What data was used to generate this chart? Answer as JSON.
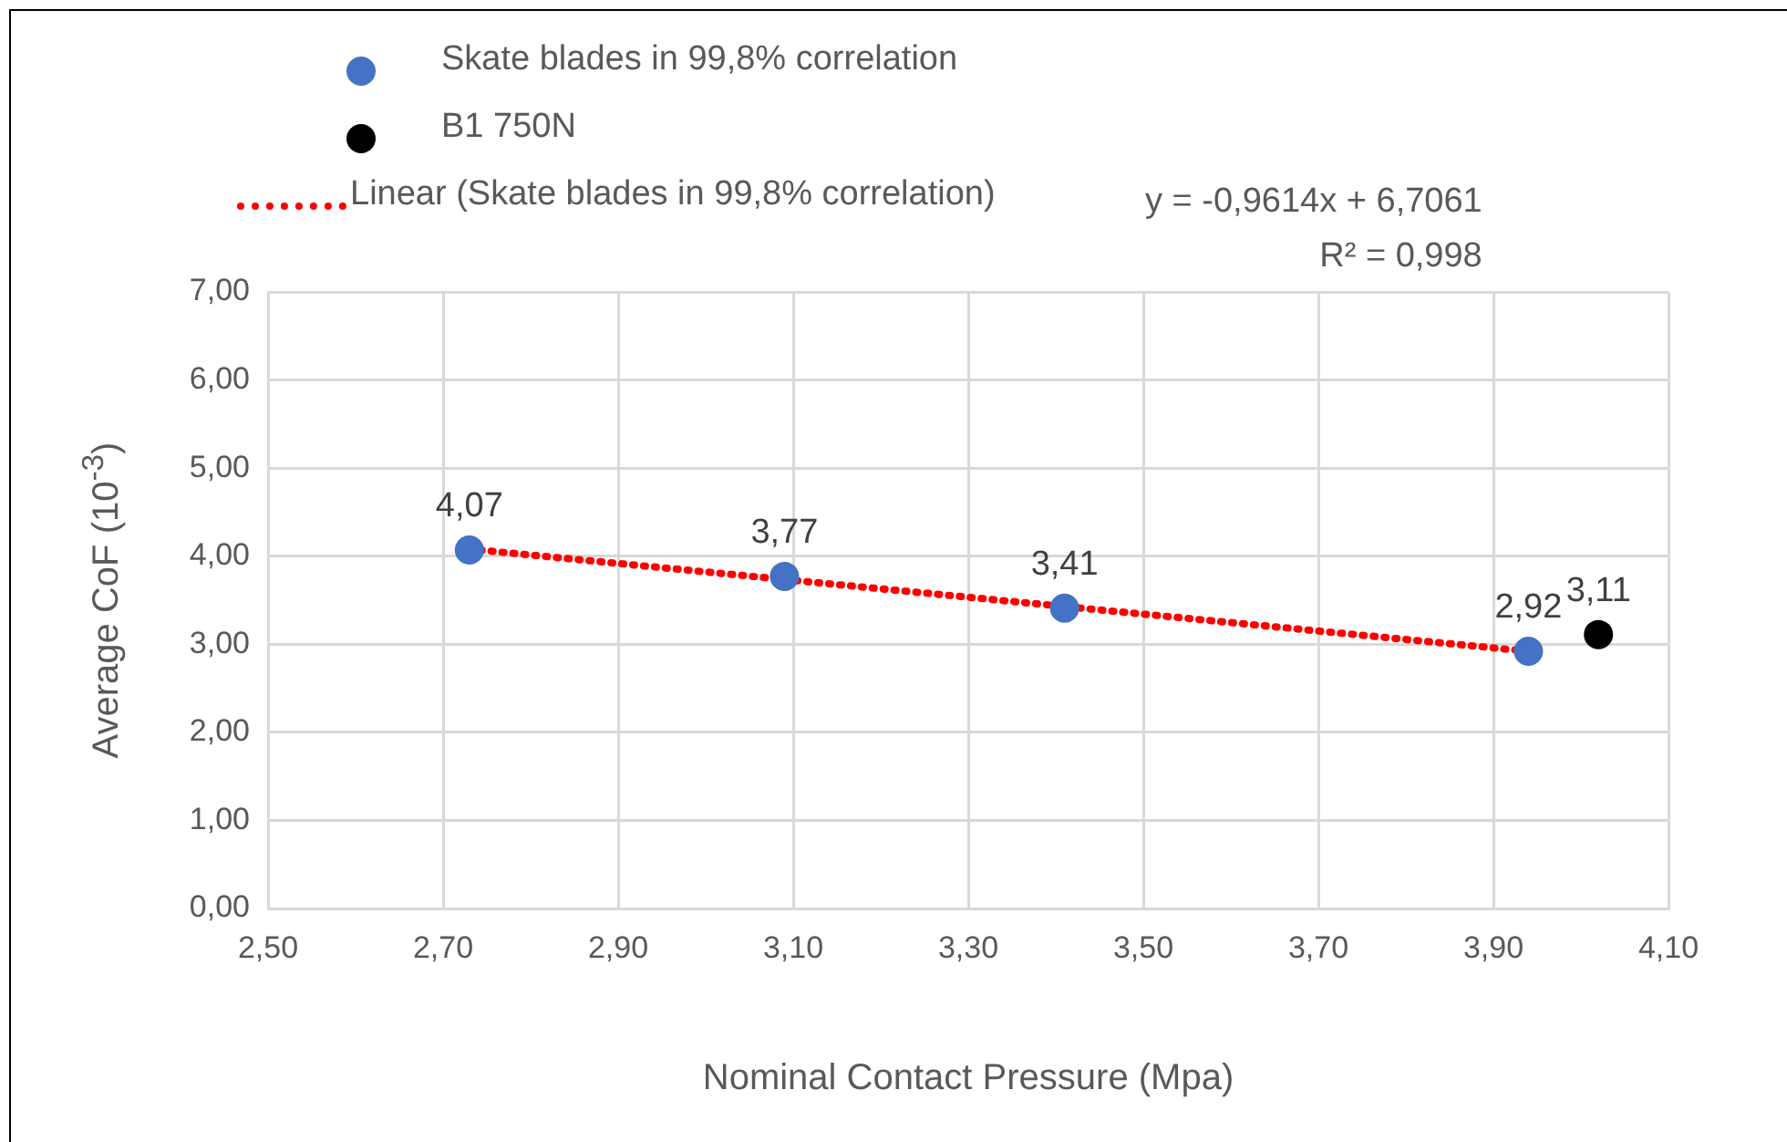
{
  "chart_data": {
    "type": "scatter",
    "xlabel": "Nominal Contact Pressure (Mpa)",
    "ylabel": "Average CoF (10$^{-3}$)",
    "series": [
      {
        "name": "Skate blades in 99,8% correlation",
        "color": "#4472c4",
        "x": [
          2.73,
          3.09,
          3.41,
          3.94
        ],
        "values": [
          4.07,
          3.77,
          3.41,
          2.92
        ],
        "value_labels": [
          "4,07",
          "3,77",
          "3,41",
          "2,92"
        ]
      },
      {
        "name": "B1 750N",
        "color": "#000000",
        "x": [
          4.02
        ],
        "values": [
          3.11
        ],
        "value_labels": [
          "3,11"
        ]
      },
      {
        "name": "Linear (Skate blades in 99,8% correlation)",
        "type": "line",
        "line_style": "dotted",
        "marker": "none",
        "color": "#ff0000",
        "x": [
          2.73,
          3.94
        ],
        "values": [
          4.08,
          2.92
        ]
      }
    ],
    "annotations": [
      "y = -0,9614x + 6,7061",
      "R² = 0,998"
    ],
    "xlim": [
      2.5,
      4.1
    ],
    "xticks": [
      {
        "value": 2.5,
        "label": "2,50"
      },
      {
        "value": 2.7,
        "label": "2,70"
      },
      {
        "value": 2.9,
        "label": "2,90"
      },
      {
        "value": 3.1,
        "label": "3,10"
      },
      {
        "value": 3.3,
        "label": "3,30"
      },
      {
        "value": 3.5,
        "label": "3,50"
      },
      {
        "value": 3.7,
        "label": "3,70"
      },
      {
        "value": 3.9,
        "label": "3,90"
      },
      {
        "value": 4.1,
        "label": "4,10"
      }
    ],
    "ylim": [
      0,
      7
    ],
    "yticks": [
      {
        "value": 0,
        "label": "0,00"
      },
      {
        "value": 1,
        "label": "1,00"
      },
      {
        "value": 2,
        "label": "2,00"
      },
      {
        "value": 3,
        "label": "3,00"
      },
      {
        "value": 4,
        "label": "4,00"
      },
      {
        "value": 5,
        "label": "5,00"
      },
      {
        "value": 6,
        "label": "6,00"
      },
      {
        "value": 7,
        "label": "7,00"
      }
    ],
    "grid": true,
    "legend": "top",
    "marker": "circle"
  }
}
